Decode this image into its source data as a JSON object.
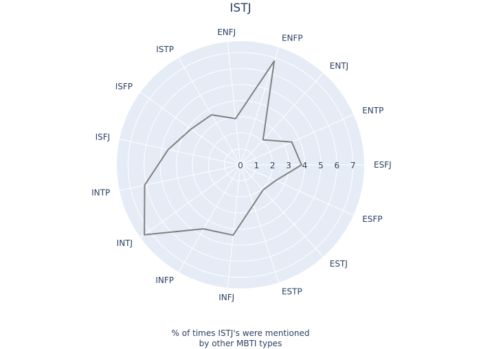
{
  "chart_data": {
    "type": "radar",
    "title": "ISTJ",
    "caption_line1": "% of times ISTJ's were mentioned",
    "caption_line2": "by other MBTI types",
    "categories": [
      "ESFJ",
      "ENTP",
      "ENTJ",
      "ENFP",
      "ENFJ",
      "ISTP",
      "ISFP",
      "ISFJ",
      "INTP",
      "INTJ",
      "INFP",
      "INFJ",
      "ESTP",
      "ESTJ",
      "ESFP"
    ],
    "radial_ticks": [
      0,
      1,
      2,
      3,
      4,
      5,
      6,
      7
    ],
    "radial_range": [
      0,
      7.7
    ],
    "series": [
      {
        "values": [
          3.8,
          3.5,
          2.1,
          6.8,
          2.9,
          3.6,
          3.8,
          4.6,
          6.1,
          7.4,
          4.6,
          4.4,
          2.6,
          2.1,
          2.4
        ]
      }
    ],
    "colors": {
      "bg": "#e5ecf6",
      "grid": "#ffffff",
      "line": "#808080",
      "text": "#2a3f5f"
    }
  }
}
